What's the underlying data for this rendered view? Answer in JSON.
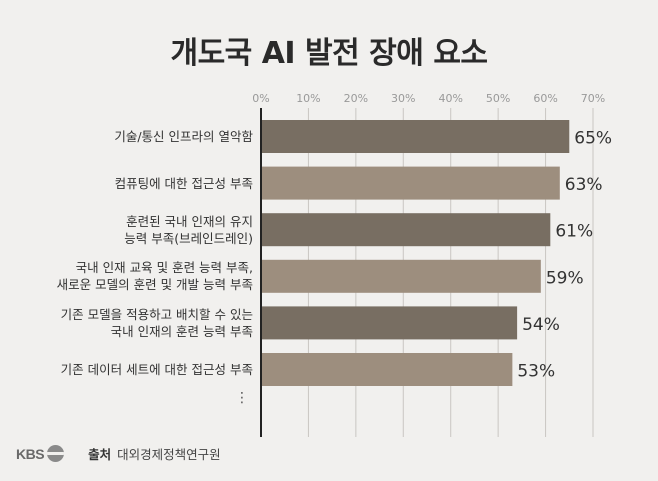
{
  "title": "개도국 AI 발전 장애 요소",
  "footer": {
    "logo_text": "KBS",
    "source_label": "출처",
    "source_text": "대외경제정책연구원"
  },
  "ellipsis": "⋮",
  "colors": {
    "dark_bar": "#786e62",
    "light_bar": "#9d8e7e",
    "grid": "#c9c6c2",
    "axis": "#222222",
    "background": "#f1f0ee"
  },
  "chart_data": {
    "type": "bar",
    "orientation": "horizontal",
    "title": "개도국 AI 발전 장애 요소",
    "xlim": [
      0,
      70
    ],
    "xticks": [
      "0%",
      "10%",
      "20%",
      "30%",
      "40%",
      "50%",
      "60%",
      "70%"
    ],
    "grid": true,
    "categories": [
      "기술/통신 인프라의 열악함",
      "컴퓨팅에 대한 접근성 부족",
      "훈련된 국내 인재의 유지\n능력 부족(브레인드레인)",
      "국내 인재 교육 및 훈련 능력 부족,\n새로운 모델의 훈련 및 개발 능력 부족",
      "기존 모델을 적용하고 배치할 수 있는\n국내 인재의 훈련 능력 부족",
      "기존 데이터 세트에 대한 접근성 부족"
    ],
    "values": [
      65,
      63,
      61,
      59,
      54,
      53
    ],
    "value_labels": [
      "65%",
      "63%",
      "61%",
      "59%",
      "54%",
      "53%"
    ]
  }
}
